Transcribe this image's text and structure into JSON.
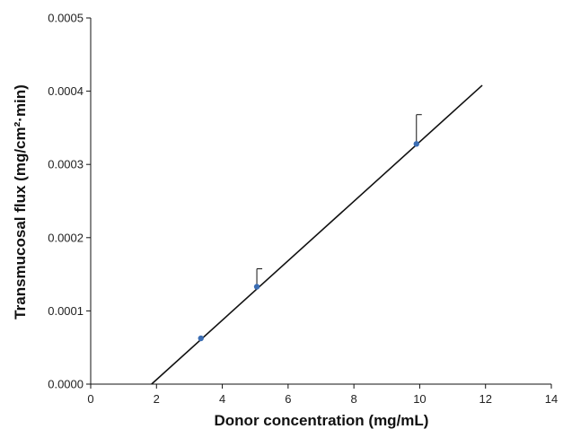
{
  "chart_data": {
    "type": "scatter",
    "xlabel": "Donor concentration (mg/mL)",
    "ylabel": "Transmucosal flux (mg/cm²·min)",
    "xlim": [
      0,
      14
    ],
    "ylim": [
      0,
      0.0005
    ],
    "xticks": [
      "0",
      "2",
      "4",
      "6",
      "8",
      "10",
      "12",
      "14"
    ],
    "yticks": [
      "0.0000",
      "0.0001",
      "0.0002",
      "0.0003",
      "0.0004",
      "0.0005"
    ],
    "grid": false,
    "points": [
      {
        "x": 3.35,
        "y": 6.25e-05,
        "err_plus": 0
      },
      {
        "x": 5.05,
        "y": 0.000133,
        "err_plus": 2.45e-05
      },
      {
        "x": 9.9,
        "y": 0.000328,
        "err_plus": 4e-05
      }
    ],
    "point_color": "#3b6db3",
    "fit_line": {
      "x": [
        1.85,
        11.9
      ],
      "y": [
        0.0,
        0.000408
      ],
      "color": "#111111"
    }
  }
}
